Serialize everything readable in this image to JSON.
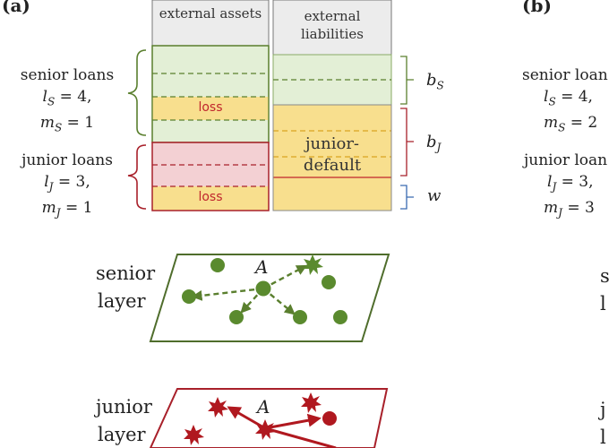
{
  "panels": {
    "a": "(a)",
    "b": "(b)"
  },
  "balance_sheet": {
    "assets_header": "external assets",
    "liabilities_header": "external liabilities",
    "junior_default": "junior-default",
    "loss": "loss",
    "brackets": {
      "bs": "b",
      "bs_sub": "S",
      "bj": "b",
      "bj_sub": "J",
      "w": "w"
    }
  },
  "panel_a": {
    "senior": {
      "title": "senior loans",
      "l": "l",
      "l_sub": "S",
      "l_val": "= 4,",
      "m": "m",
      "m_sub": "S",
      "m_val": "= 1"
    },
    "junior": {
      "title": "junior loans",
      "l": "l",
      "l_sub": "J",
      "l_val": "= 3,",
      "m": "m",
      "m_sub": "J",
      "m_val": "= 1"
    }
  },
  "panel_b": {
    "senior": {
      "title": "senior loan",
      "l": "l",
      "l_sub": "S",
      "l_val": "= 4,",
      "m": "m",
      "m_sub": "S",
      "m_val": "= 2"
    },
    "junior": {
      "title": "junior loan",
      "l": "l",
      "l_sub": "J",
      "l_val": "= 3,",
      "m": "m",
      "m_sub": "J",
      "m_val": "= 3"
    },
    "senior_layer_partial": [
      "s",
      "l"
    ],
    "junior_layer_partial": [
      "j",
      "l"
    ]
  },
  "layers": {
    "senior": {
      "line1": "senior",
      "line2": "layer",
      "node": "A"
    },
    "junior": {
      "line1": "junior",
      "line2": "layer",
      "node": "A"
    }
  },
  "colors": {
    "senior_green": "#5a7f2e",
    "senior_fill": "#e3efd6",
    "junior_red": "#a8202a",
    "junior_fill": "#f3d0d3",
    "loss_fill": "#f8df8e",
    "header_fill": "#ececec"
  }
}
